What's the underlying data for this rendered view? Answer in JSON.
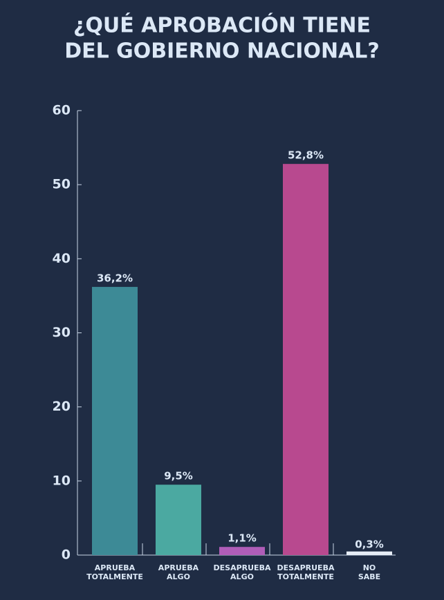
{
  "chart_data": {
    "type": "bar",
    "title": [
      "¿QUÉ APROBACIÓN TIENE",
      "DEL GOBIERNO NACIONAL?"
    ],
    "categories": [
      "APRUEBA TOTALMENTE",
      "APRUEBA ALGO",
      "DESAPRUEBA ALGO",
      "DESAPRUEBA TOTALMENTE",
      "NO SABE"
    ],
    "values": [
      36.2,
      9.5,
      1.1,
      52.8,
      0.3
    ],
    "value_labels": [
      "36,2%",
      "9,5%",
      "1,1%",
      "52,8%",
      "0,3%"
    ],
    "colors": [
      "#3d8a96",
      "#4ba9a1",
      "#b05db8",
      "#b8498f",
      "#e6edf6"
    ],
    "ylim": [
      0,
      60
    ],
    "yticks": [
      0,
      10,
      20,
      30,
      40,
      50,
      60
    ],
    "grid": false
  }
}
